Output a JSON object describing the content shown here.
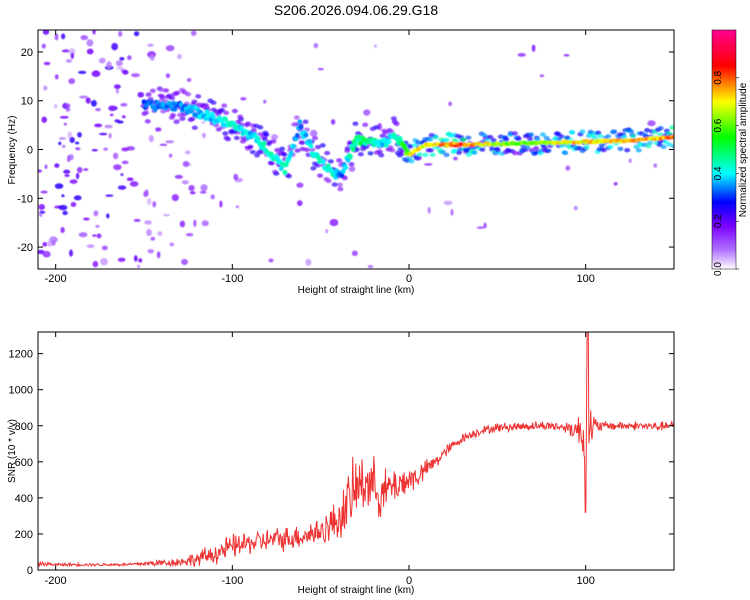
{
  "chart_data": [
    {
      "type": "heatmap",
      "title": "S206.2026.094.06.29.G18",
      "xlabel": "Height of straight line (km)",
      "ylabel": "Frequency (Hz)",
      "xlim": [
        -210,
        150
      ],
      "ylim": [
        -24.5,
        24.5
      ],
      "xticks": [
        -200,
        -100,
        0,
        100
      ],
      "yticks": [
        -20,
        -10,
        0,
        10,
        20
      ],
      "colorbar": {
        "label": "Normalized spectral amplitude",
        "range": [
          0,
          1
        ],
        "ticks": [
          "0.0",
          "0.2",
          "0.4",
          "0.6",
          "0.8"
        ],
        "colors": [
          "#ffffff",
          "#9900ff",
          "#0000ff",
          "#00ffff",
          "#00ff00",
          "#ffff00",
          "#ff0000",
          "#ff00aa"
        ]
      },
      "ridge": {
        "x": [
          -145,
          -130,
          -115,
          -100,
          -90,
          -80,
          -75,
          -70,
          -62,
          -55,
          -48,
          -42,
          -38,
          -30,
          -22,
          -15,
          -8,
          -3,
          0,
          10,
          30,
          60,
          90,
          120,
          150
        ],
        "freq": [
          9,
          9,
          7,
          5,
          3,
          0,
          -2,
          -4,
          5,
          0,
          -3,
          -5,
          -5,
          2,
          1.5,
          1,
          3,
          0.5,
          -1,
          1,
          1,
          1.2,
          1.5,
          1.8,
          2.5
        ],
        "amplitude": [
          0.35,
          0.35,
          0.4,
          0.45,
          0.4,
          0.45,
          0.45,
          0.45,
          0.35,
          0.45,
          0.45,
          0.45,
          0.35,
          0.5,
          0.5,
          0.4,
          0.45,
          0.55,
          0.7,
          0.75,
          0.85,
          0.6,
          0.75,
          0.75,
          0.8
        ]
      }
    },
    {
      "type": "line",
      "title": "",
      "xlabel": "Height of straight line (km)",
      "ylabel": "SNR (10 * v/v)",
      "xlim": [
        -210,
        150
      ],
      "ylim": [
        0,
        1320
      ],
      "xticks": [
        -200,
        -100,
        0,
        100
      ],
      "yticks": [
        0,
        200,
        400,
        600,
        800,
        1000,
        1200
      ],
      "series": [
        {
          "name": "SNR",
          "color": "#ee3333",
          "x": [
            -210,
            -200,
            -190,
            -180,
            -170,
            -160,
            -150,
            -140,
            -130,
            -120,
            -110,
            -100,
            -90,
            -80,
            -70,
            -60,
            -50,
            -40,
            -35,
            -30,
            -25,
            -20,
            -15,
            -10,
            -5,
            0,
            5,
            10,
            15,
            20,
            30,
            40,
            50,
            60,
            70,
            80,
            90,
            95,
            98,
            100,
            102,
            104,
            106,
            110,
            120,
            130,
            140,
            150
          ],
          "mean": [
            35,
            30,
            30,
            30,
            30,
            30,
            35,
            40,
            45,
            60,
            90,
            130,
            150,
            165,
            175,
            190,
            215,
            280,
            360,
            450,
            500,
            470,
            420,
            460,
            480,
            500,
            520,
            560,
            600,
            650,
            730,
            770,
            790,
            795,
            800,
            800,
            790,
            780,
            760,
            700,
            750,
            800,
            790,
            800,
            800,
            800,
            795,
            800
          ],
          "noise": [
            15,
            10,
            10,
            10,
            10,
            10,
            15,
            25,
            30,
            50,
            70,
            80,
            75,
            75,
            80,
            80,
            100,
            140,
            200,
            220,
            200,
            180,
            160,
            130,
            110,
            100,
            80,
            60,
            50,
            40,
            30,
            30,
            30,
            30,
            30,
            30,
            40,
            90,
            160,
            320,
            250,
            100,
            60,
            30,
            30,
            30,
            30,
            30
          ]
        }
      ]
    }
  ]
}
